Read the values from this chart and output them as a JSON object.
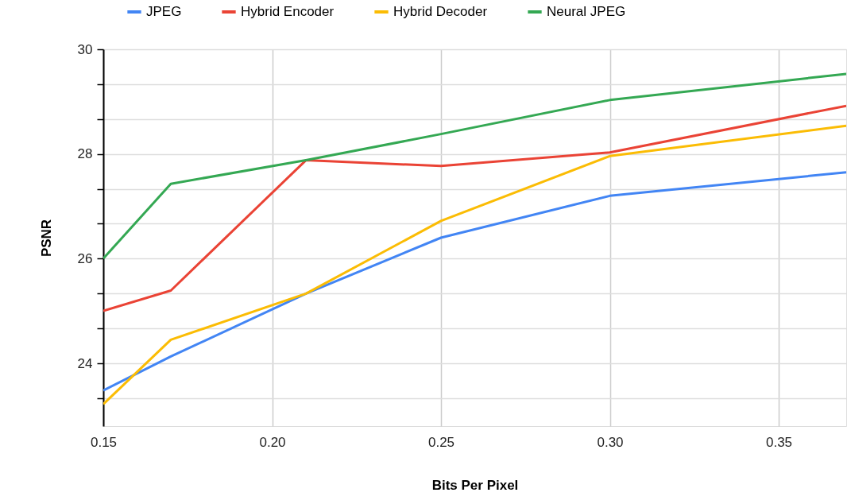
{
  "chart_data": {
    "type": "line",
    "xlabel": "Bits Per Pixel",
    "ylabel": "PSNR",
    "x": [
      0.15,
      0.17,
      0.21,
      0.25,
      0.3,
      0.37
    ],
    "series": [
      {
        "name": "JPEG",
        "color": "#4285f4",
        "values": [
          23.48,
          24.13,
          25.33,
          26.4,
          27.2,
          27.65
        ]
      },
      {
        "name": "Hybrid Encoder",
        "color": "#ea4335",
        "values": [
          25.0,
          25.39,
          27.88,
          27.77,
          28.03,
          28.92
        ]
      },
      {
        "name": "Hybrid Decoder",
        "color": "#fbbc04",
        "values": [
          23.22,
          24.45,
          25.33,
          26.72,
          27.96,
          28.54
        ]
      },
      {
        "name": "Neural JPEG",
        "color": "#34a853",
        "values": [
          26.0,
          27.43,
          27.88,
          28.38,
          29.03,
          29.53
        ]
      }
    ],
    "xlim": [
      0.15,
      0.37
    ],
    "xticks": [
      0.15,
      {
        "value": 0.2,
        "label": "0.20"
      },
      0.25,
      {
        "value": 0.3,
        "label": "0.30"
      },
      0.35
    ],
    "ylim": [
      22.8,
      30
    ],
    "yticks": [
      30,
      {
        "value": 29.333,
        "label": null
      },
      {
        "value": 28.667,
        "label": null
      },
      28,
      {
        "value": 27.333,
        "label": null
      },
      {
        "value": 26.667,
        "label": null
      },
      26,
      {
        "value": 25.333,
        "label": null
      },
      {
        "value": 24.667,
        "label": null
      },
      24,
      {
        "value": 23.333,
        "label": null
      }
    ],
    "grid": true,
    "legend": "top",
    "line_style": "solid"
  }
}
